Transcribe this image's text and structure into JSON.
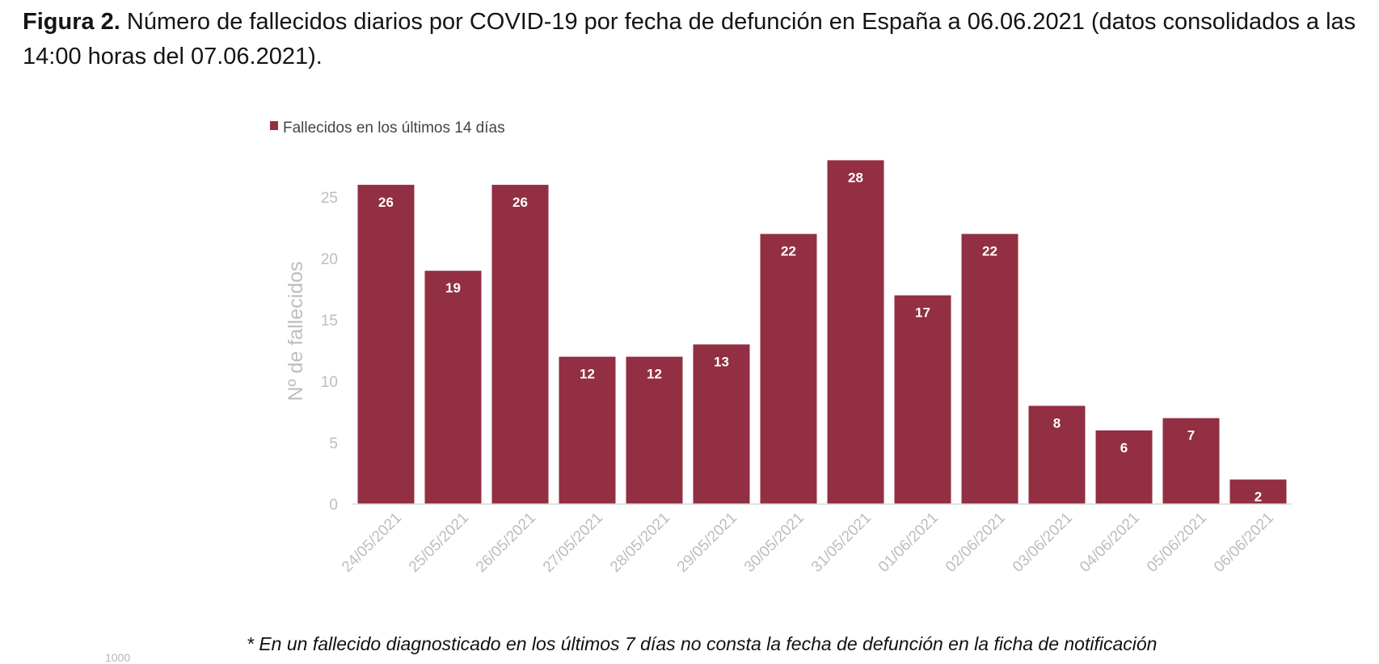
{
  "figure": {
    "label": "Figura 2.",
    "caption": "Número de fallecidos diarios por COVID-19 por fecha de defunción en España a 06.06.2021 (datos consolidados a las 14:00 horas del 07.06.2021).",
    "footnote": "* En un  fallecido diagnosticado en los últimos 7 días no consta la fecha de defunción en la ficha de notificación",
    "stray_text": "1000"
  },
  "colors": {
    "bar": "#922f42",
    "axis_text": "#bdbdbd",
    "baseline": "#d9d9d9",
    "label_text": "#ffffff"
  },
  "chart_data": {
    "type": "bar",
    "title": "",
    "xlabel": "",
    "ylabel": "Nº de fallecidos",
    "ylim": [
      0,
      28
    ],
    "yticks": [
      0,
      5,
      10,
      15,
      20,
      25
    ],
    "grid": false,
    "legend_position": "top-left",
    "categories": [
      "24/05/2021",
      "25/05/2021",
      "26/05/2021",
      "27/05/2021",
      "28/05/2021",
      "29/05/2021",
      "30/05/2021",
      "31/05/2021",
      "01/06/2021",
      "02/06/2021",
      "03/06/2021",
      "04/06/2021",
      "05/06/2021",
      "06/06/2021"
    ],
    "series": [
      {
        "name": "Fallecidos en los últimos 14 días",
        "values": [
          26,
          19,
          26,
          12,
          12,
          13,
          22,
          28,
          17,
          22,
          8,
          6,
          7,
          2
        ]
      }
    ]
  }
}
